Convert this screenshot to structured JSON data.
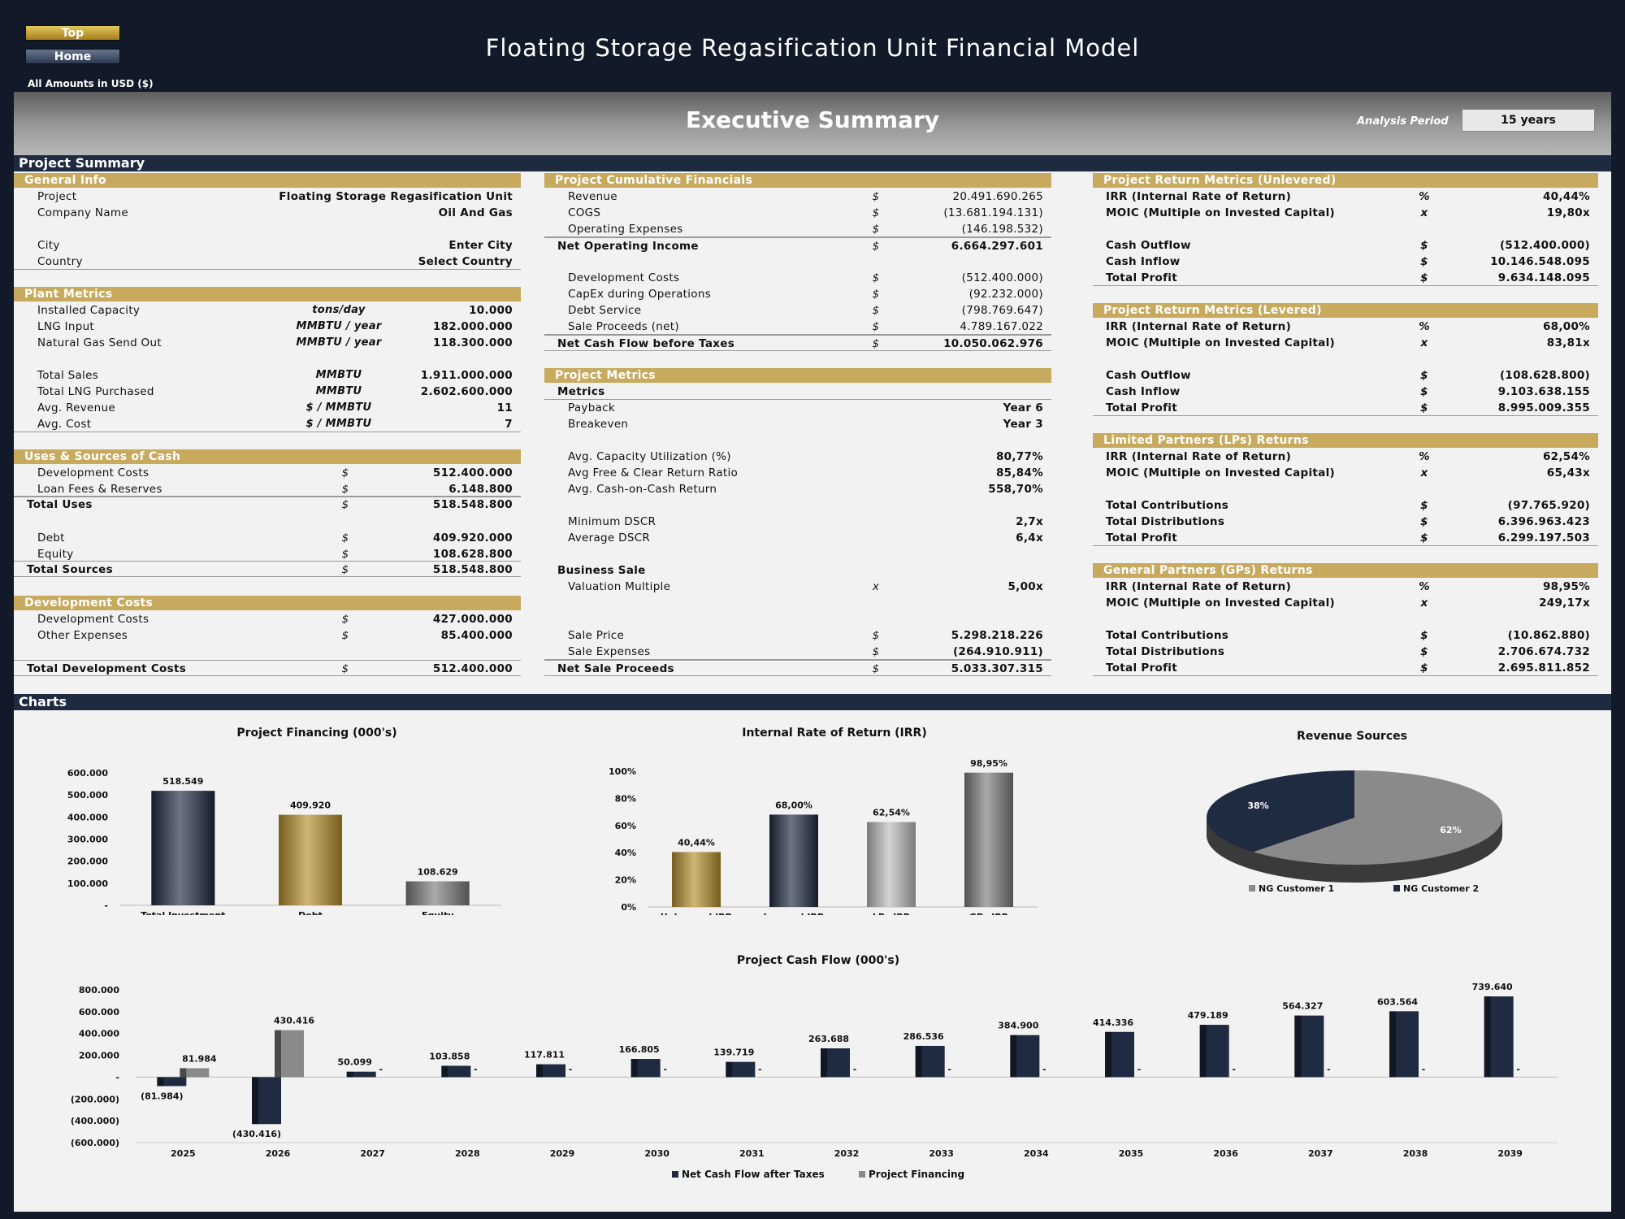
{
  "nav": {
    "top": "Top",
    "home": "Home",
    "amounts": "All Amounts in  USD ($)"
  },
  "title": "Floating Storage Regasification Unit Financial Model",
  "exec_title": "Executive Summary",
  "analysis": {
    "label": "Analysis Period",
    "value": "15 years"
  },
  "sections": {
    "summary": "Project Summary",
    "charts": "Charts"
  },
  "general": {
    "header": "General Info",
    "rows": [
      [
        "Project",
        "",
        "Floating Storage Regasification Unit"
      ],
      [
        "Company Name",
        "",
        "Oil And Gas"
      ],
      [
        "City",
        "",
        "Enter City"
      ],
      [
        "Country",
        "",
        "Select Country"
      ]
    ]
  },
  "plant": {
    "header": "Plant Metrics",
    "rows": [
      [
        "Installed Capacity",
        "tons/day",
        "10.000"
      ],
      [
        "LNG Input",
        "MMBTU / year",
        "182.000.000"
      ],
      [
        "Natural Gas Send Out",
        "MMBTU / year",
        "118.300.000"
      ],
      [
        "Total Sales",
        "MMBTU",
        "1.911.000.000"
      ],
      [
        "Total LNG Purchased",
        "MMBTU",
        "2.602.600.000"
      ],
      [
        "Avg. Revenue",
        "$ / MMBTU",
        "11"
      ],
      [
        "Avg. Cost",
        "$ / MMBTU",
        "7"
      ]
    ]
  },
  "uses": {
    "header": "Uses & Sources of Cash",
    "rows": [
      [
        "Development Costs",
        "$",
        "512.400.000"
      ],
      [
        "Loan Fees & Reserves",
        "$",
        "6.148.800"
      ],
      [
        "Total Uses",
        "$",
        "518.548.800"
      ],
      [
        "Debt",
        "$",
        "409.920.000"
      ],
      [
        "Equity",
        "$",
        "108.628.800"
      ],
      [
        "Total Sources",
        "$",
        "518.548.800"
      ]
    ]
  },
  "devcosts": {
    "header": "Development Costs",
    "rows": [
      [
        "Development Costs",
        "$",
        "427.000.000"
      ],
      [
        "Other Expenses",
        "$",
        "85.400.000"
      ],
      [
        "Total Development Costs",
        "$",
        "512.400.000"
      ]
    ]
  },
  "cumfin": {
    "header": "Project Cumulative Financials",
    "rows": [
      [
        "Revenue",
        "$",
        "20.491.690.265"
      ],
      [
        "COGS",
        "$",
        "(13.681.194.131)"
      ],
      [
        "Operating Expenses",
        "$",
        "(146.198.532)"
      ],
      [
        "Net Operating Income",
        "$",
        "6.664.297.601"
      ],
      [
        "Development Costs",
        "$",
        "(512.400.000)"
      ],
      [
        "CapEx during Operations",
        "$",
        "(92.232.000)"
      ],
      [
        "Debt Service",
        "$",
        "(798.769.647)"
      ],
      [
        "Sale Proceeds (net)",
        "$",
        "4.789.167.022"
      ],
      [
        "Net Cash Flow before Taxes",
        "$",
        "10.050.062.976"
      ]
    ]
  },
  "pmetrics": {
    "header": "Project Metrics",
    "rows": [
      [
        "Metrics",
        "",
        ""
      ],
      [
        "Payback",
        "",
        "Year 6"
      ],
      [
        "Breakeven",
        "",
        "Year 3"
      ],
      [
        "Avg. Capacity Utilization (%)",
        "",
        "80,77%"
      ],
      [
        "Avg Free & Clear Return Ratio",
        "",
        "85,84%"
      ],
      [
        "Avg. Cash-on-Cash Return",
        "",
        "558,70%"
      ],
      [
        "Minimum DSCR",
        "",
        "2,7x"
      ],
      [
        "Average DSCR",
        "",
        "6,4x"
      ],
      [
        "Business Sale",
        "",
        ""
      ],
      [
        "Valuation Multiple",
        "x",
        "5,00x"
      ],
      [
        "Sale Price",
        "$",
        "5.298.218.226"
      ],
      [
        "Sale Expenses",
        "$",
        "(264.910.911)"
      ],
      [
        "Net Sale Proceeds",
        "$",
        "5.033.307.315"
      ]
    ]
  },
  "unlev": {
    "header": "Project Return Metrics (Unlevered)",
    "rows": [
      [
        "IRR (Internal Rate of Return)",
        "%",
        "40,44%"
      ],
      [
        "MOIC (Multiple on Invested Capital)",
        "x",
        "19,80x"
      ],
      [
        "Cash Outflow",
        "$",
        "(512.400.000)"
      ],
      [
        "Cash Inflow",
        "$",
        "10.146.548.095"
      ],
      [
        "Total Profit",
        "$",
        "9.634.148.095"
      ]
    ]
  },
  "lev": {
    "header": "Project Return Metrics (Levered)",
    "rows": [
      [
        "IRR (Internal Rate of Return)",
        "%",
        "68,00%"
      ],
      [
        "MOIC (Multiple on Invested Capital)",
        "x",
        "83,81x"
      ],
      [
        "Cash Outflow",
        "$",
        "(108.628.800)"
      ],
      [
        "Cash Inflow",
        "$",
        "9.103.638.155"
      ],
      [
        "Total Profit",
        "$",
        "8.995.009.355"
      ]
    ]
  },
  "lps": {
    "header": "Limited Partners (LPs) Returns",
    "rows": [
      [
        "IRR (Internal Rate of Return)",
        "%",
        "62,54%"
      ],
      [
        "MOIC (Multiple on Invested Capital)",
        "x",
        "65,43x"
      ],
      [
        "Total Contributions",
        "$",
        "(97.765.920)"
      ],
      [
        "Total Distributions",
        "$",
        "6.396.963.423"
      ],
      [
        "Total Profit",
        "$",
        "6.299.197.503"
      ]
    ]
  },
  "gps": {
    "header": "General Partners (GPs) Returns",
    "rows": [
      [
        "IRR (Internal Rate of Return)",
        "%",
        "98,95%"
      ],
      [
        "MOIC (Multiple on Invested Capital)",
        "x",
        "249,17x"
      ],
      [
        "Total Contributions",
        "$",
        "(10.862.880)"
      ],
      [
        "Total Distributions",
        "$",
        "2.706.674.732"
      ],
      [
        "Total Profit",
        "$",
        "2.695.811.852"
      ]
    ]
  },
  "chart_data": [
    {
      "type": "bar",
      "title": "Project Financing (000's)",
      "categories": [
        "Total Investment",
        "Debt",
        "Equity"
      ],
      "values": [
        518549,
        409920,
        108629
      ],
      "labels": [
        "518.549",
        "409.920",
        "108.629"
      ],
      "ylim": [
        0,
        600000
      ],
      "yticks": [
        "-",
        "100.000",
        "200.000",
        "300.000",
        "400.000",
        "500.000",
        "600.000"
      ],
      "colors": [
        "#1f2b40",
        "#b58f2c",
        "#7d7d7d"
      ]
    },
    {
      "type": "bar",
      "title": "Internal Rate of Return (IRR)",
      "categories": [
        "Unlevered IRR",
        "Levered IRR",
        "LPs IRR",
        "GPs IRR"
      ],
      "values": [
        40.44,
        68.0,
        62.54,
        98.95
      ],
      "labels": [
        "40,44%",
        "68,00%",
        "62,54%",
        "98,95%"
      ],
      "ylim": [
        0,
        100
      ],
      "yticks": [
        "0%",
        "20%",
        "40%",
        "60%",
        "80%",
        "100%"
      ],
      "colors": [
        "#b58f2c",
        "#1f2b40",
        "#bdbdbd",
        "#7d7d7d"
      ]
    },
    {
      "type": "pie",
      "title": "Revenue Sources",
      "series": [
        {
          "name": "NG Customer 1",
          "value": 62,
          "label": "62%",
          "color": "#8a8a8a"
        },
        {
          "name": "NG Customer 2",
          "value": 38,
          "label": "38%",
          "color": "#1f2b40"
        }
      ]
    },
    {
      "type": "bar",
      "title": "Project Cash Flow (000's)",
      "categories": [
        "2025",
        "2026",
        "2027",
        "2028",
        "2029",
        "2030",
        "2031",
        "2032",
        "2033",
        "2034",
        "2035",
        "2036",
        "2037",
        "2038",
        "2039"
      ],
      "ylim": [
        -600000,
        800000
      ],
      "yticks": [
        "(600.000)",
        "(400.000)",
        "(200.000)",
        "-",
        "200.000",
        "400.000",
        "600.000",
        "800.000"
      ],
      "series": [
        {
          "name": "Net Cash Flow after Taxes",
          "color": "#1f2b40",
          "values": [
            -81984,
            -430416,
            50099,
            103858,
            117811,
            166805,
            139719,
            263688,
            286536,
            384900,
            414336,
            479189,
            564327,
            603564,
            739640
          ],
          "labels": [
            "(81.984)",
            "(430.416)",
            "50.099",
            "103.858",
            "117.811",
            "166.805",
            "139.719",
            "263.688",
            "286.536",
            "384.900",
            "414.336",
            "479.189",
            "564.327",
            "603.564",
            "739.640"
          ]
        },
        {
          "name": "Project Financing",
          "color": "#8a8a8a",
          "values": [
            81984,
            430416,
            0,
            0,
            0,
            0,
            0,
            0,
            0,
            0,
            0,
            0,
            0,
            0,
            0
          ],
          "labels": [
            "81.984",
            "430.416",
            "-",
            "-",
            "-",
            "-",
            "-",
            "-",
            "-",
            "-",
            "-",
            "-",
            "-",
            "-",
            "-"
          ]
        }
      ]
    }
  ]
}
